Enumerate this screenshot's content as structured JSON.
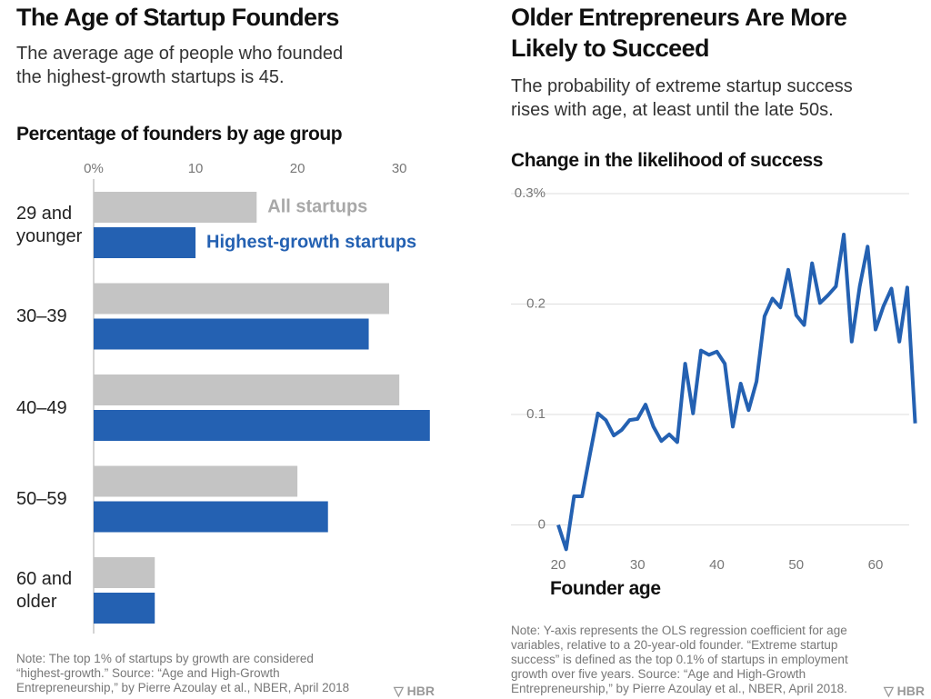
{
  "chart_data": [
    {
      "type": "bar",
      "orientation": "horizontal",
      "title": "The Age of Startup Founders",
      "subtitle": "The average age of people who founded the highest-growth startups is 45.",
      "axis_title": "Percentage of founders by age group",
      "categories": [
        "29 and younger",
        "30–39",
        "40–49",
        "50–59",
        "60 and older"
      ],
      "series": [
        {
          "name": "All startups",
          "color": "#c4c4c4",
          "values": [
            16,
            29,
            30,
            20,
            6
          ]
        },
        {
          "name": "Highest-growth startups",
          "color": "#2461b2",
          "values": [
            10,
            27,
            33,
            23,
            6
          ]
        }
      ],
      "xlim": [
        0,
        34
      ],
      "xticks": [
        {
          "value": 0,
          "label": "0%"
        },
        10,
        20,
        30
      ],
      "note": "Note: The top 1% of startups by growth are considered “highest-growth.” Source: “Age and High-Growth Entrepreneurship,” by Pierre Azoulay et al., NBER, April 2018",
      "brand": "HBR"
    },
    {
      "type": "line",
      "title": "Older Entrepreneurs Are More Likely to Succeed",
      "subtitle": "The probability of extreme startup success rises with age, at least until the late 50s.",
      "axis_title": "Change in the likelihood of success",
      "x_label": "Founder age",
      "x": [
        20,
        21,
        22,
        23,
        24,
        25,
        26,
        27,
        28,
        29,
        30,
        31,
        32,
        33,
        34,
        35,
        36,
        37,
        38,
        39,
        40,
        41,
        42,
        43,
        44,
        45,
        46,
        47,
        48,
        49,
        50,
        51,
        52,
        53,
        54,
        55,
        56,
        57,
        58,
        59,
        60,
        61,
        62,
        63,
        64,
        65
      ],
      "values": [
        0,
        -0.022,
        0.026,
        0.026,
        0.064,
        0.101,
        0.095,
        0.081,
        0.086,
        0.095,
        0.096,
        0.109,
        0.089,
        0.076,
        0.082,
        0.075,
        0.146,
        0.101,
        0.158,
        0.154,
        0.157,
        0.146,
        0.089,
        0.128,
        0.104,
        0.13,
        0.189,
        0.205,
        0.197,
        0.231,
        0.19,
        0.181,
        0.237,
        0.201,
        0.208,
        0.216,
        0.263,
        0.166,
        0.216,
        0.252,
        0.177,
        0.198,
        0.214,
        0.166,
        0.215,
        0.092
      ],
      "color": "#2461b2",
      "xlim": [
        14.5,
        65.5
      ],
      "xticks": [
        20,
        30,
        40,
        50,
        60
      ],
      "ylim": [
        -0.03,
        0.3
      ],
      "yticks": [
        0,
        0.1,
        0.2,
        {
          "value": 0.3,
          "label": "0.3%"
        }
      ],
      "grid": true,
      "note": "Note: Y-axis represents the OLS regression coefficient for age variables, relative to a 20-year-old founder. “Extreme startup success” is defined as the top 0.1% of startups in employment growth over five years. Source: “Age and High-Growth Entrepreneurship,” by Pierre Azoulay et al., NBER, April 2018.",
      "brand": "HBR"
    }
  ]
}
